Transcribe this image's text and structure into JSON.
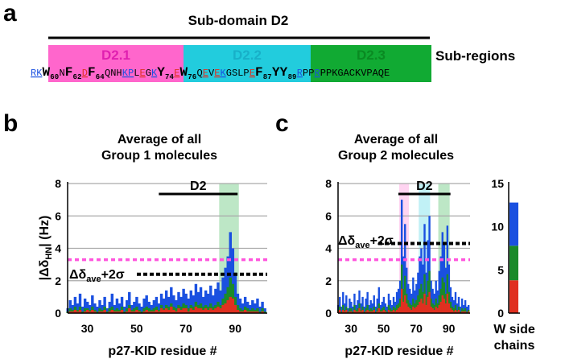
{
  "panel_a": {
    "letter": "a",
    "header": "Sub-domain D2",
    "subregions_label": "Sub-regions",
    "regions": [
      {
        "name": "D2.1",
        "color": "#ff66cc",
        "text_color": "#e020b0"
      },
      {
        "name": "D2.2",
        "color": "#22ccdd",
        "text_color": "#18b0c8"
      },
      {
        "name": "D2.3",
        "color": "#11aa33",
        "text_color": "#0a8a22"
      }
    ],
    "sequence": [
      {
        "t": "RK",
        "s": "m",
        "c": "blue",
        "u": true
      },
      {
        "t": "W",
        "s": "b",
        "c": "black"
      },
      {
        "t": "60",
        "s": "sub"
      },
      {
        "t": "N",
        "s": "m",
        "c": "black"
      },
      {
        "t": "F",
        "s": "b",
        "c": "black"
      },
      {
        "t": "62",
        "s": "sub"
      },
      {
        "t": "D",
        "s": "m",
        "c": "red",
        "u": true
      },
      {
        "t": "F",
        "s": "b",
        "c": "black"
      },
      {
        "t": "64",
        "s": "sub"
      },
      {
        "t": "QNH",
        "s": "m",
        "c": "black"
      },
      {
        "t": "KP",
        "s": "m",
        "c": "blue",
        "u": true
      },
      {
        "t": "L",
        "s": "m",
        "c": "black"
      },
      {
        "t": "E",
        "s": "m",
        "c": "red",
        "u": true
      },
      {
        "t": "G",
        "s": "m",
        "c": "black"
      },
      {
        "t": "K",
        "s": "m",
        "c": "blue",
        "u": true
      },
      {
        "t": "Y",
        "s": "b",
        "c": "black"
      },
      {
        "t": "74",
        "s": "sub"
      },
      {
        "t": "E",
        "s": "m",
        "c": "red",
        "u": true
      },
      {
        "t": "W",
        "s": "b",
        "c": "black"
      },
      {
        "t": "76",
        "s": "sub"
      },
      {
        "t": "Q",
        "s": "m",
        "c": "black"
      },
      {
        "t": "E",
        "s": "m",
        "c": "red",
        "u": true
      },
      {
        "t": "V",
        "s": "m",
        "c": "black"
      },
      {
        "t": "E",
        "s": "m",
        "c": "red",
        "u": true
      },
      {
        "t": "K",
        "s": "m",
        "c": "blue",
        "u": true
      },
      {
        "t": "GSLP",
        "s": "m",
        "c": "black"
      },
      {
        "t": "E",
        "s": "m",
        "c": "red",
        "u": true
      },
      {
        "t": "F",
        "s": "b",
        "c": "black"
      },
      {
        "t": "87",
        "s": "sub"
      },
      {
        "t": "YY",
        "s": "b",
        "c": "black"
      },
      {
        "t": "89",
        "s": "sub"
      },
      {
        "t": "R",
        "s": "m",
        "c": "blue",
        "u": true
      },
      {
        "t": "PP",
        "s": "m",
        "c": "black"
      },
      {
        "t": "R",
        "s": "m",
        "c": "blue",
        "u": true
      },
      {
        "t": "PPKGACKVPAQE",
        "s": "m",
        "c": "black"
      }
    ]
  },
  "colors": {
    "blue": "#1a50e0",
    "red": "#e03020",
    "green": "#1a8a2a",
    "magenta": "#ff55dd",
    "threshold": "#000000"
  },
  "chart_data": [
    {
      "type": "bar",
      "panel": "b",
      "title": [
        "Average of all",
        "Group 1 molecules"
      ],
      "xlabel": "p27-KID residue #",
      "ylabel": "|ΔδHN| (Hz)",
      "xlim": [
        22,
        103
      ],
      "ylim": [
        0,
        8
      ],
      "xticks": [
        30,
        50,
        70,
        90
      ],
      "yticks": [
        0,
        2,
        4,
        6,
        8
      ],
      "d2_label": "D2",
      "d2_range": [
        60,
        90
      ],
      "highlights": [
        {
          "from": 84,
          "to": 91,
          "color": "#11aa33"
        }
      ],
      "threshold_label": "Δδave+2σ",
      "threshold_black": 2.4,
      "threshold_magenta": 3.3,
      "x": [
        22,
        23,
        24,
        25,
        26,
        27,
        28,
        29,
        30,
        31,
        32,
        33,
        34,
        35,
        36,
        37,
        38,
        39,
        40,
        41,
        42,
        43,
        44,
        45,
        46,
        47,
        48,
        49,
        50,
        51,
        52,
        53,
        54,
        55,
        56,
        57,
        58,
        59,
        60,
        61,
        62,
        63,
        64,
        65,
        66,
        67,
        68,
        69,
        70,
        71,
        72,
        73,
        74,
        75,
        76,
        77,
        78,
        79,
        80,
        81,
        82,
        83,
        84,
        85,
        86,
        87,
        88,
        89,
        90,
        91,
        92,
        93,
        94,
        95,
        96,
        97,
        98,
        99,
        100,
        101,
        102
      ],
      "series": [
        {
          "name": "blue",
          "values": [
            0.3,
            0.8,
            0.5,
            1.0,
            0.6,
            1.2,
            0.4,
            0.9,
            0.7,
            0.5,
            1.1,
            0.6,
            0.4,
            0.8,
            0.5,
            1.0,
            0.3,
            0.7,
            1.2,
            0.5,
            0.9,
            0.6,
            1.0,
            0.4,
            0.8,
            1.3,
            0.5,
            0.7,
            1.0,
            0.6,
            0.4,
            0.9,
            1.1,
            0.7,
            0.5,
            0.8,
            1.0,
            0.6,
            1.2,
            0.9,
            1.4,
            1.0,
            1.6,
            1.1,
            0.8,
            1.3,
            1.0,
            1.5,
            1.2,
            0.9,
            1.4,
            1.1,
            1.8,
            1.3,
            1.6,
            1.0,
            1.4,
            1.2,
            1.7,
            1.1,
            1.5,
            1.9,
            1.4,
            2.2,
            2.8,
            3.5,
            5.0,
            4.0,
            2.5,
            1.2,
            0.9,
            0.6,
            1.0,
            0.7,
            0.5,
            0.8,
            0.6,
            0.9,
            0.4,
            0.7,
            0.3
          ]
        },
        {
          "name": "green",
          "values": [
            0.1,
            0.3,
            0.2,
            0.4,
            0.2,
            0.4,
            0.1,
            0.3,
            0.3,
            0.2,
            0.4,
            0.2,
            0.1,
            0.3,
            0.2,
            0.4,
            0.1,
            0.3,
            0.4,
            0.2,
            0.3,
            0.2,
            0.4,
            0.1,
            0.3,
            0.5,
            0.2,
            0.3,
            0.4,
            0.2,
            0.1,
            0.3,
            0.4,
            0.3,
            0.2,
            0.3,
            0.4,
            0.2,
            0.5,
            0.3,
            0.5,
            0.4,
            0.6,
            0.4,
            0.3,
            0.5,
            0.4,
            0.6,
            0.5,
            0.3,
            0.5,
            0.4,
            0.7,
            0.5,
            0.6,
            0.4,
            0.5,
            0.4,
            0.6,
            0.4,
            0.5,
            0.7,
            0.5,
            0.9,
            1.2,
            1.6,
            2.2,
            1.8,
            1.0,
            0.5,
            0.3,
            0.2,
            0.4,
            0.3,
            0.2,
            0.3,
            0.2,
            0.3,
            0.1,
            0.3,
            0.1
          ]
        },
        {
          "name": "red",
          "values": [
            0.0,
            0.1,
            0.1,
            0.2,
            0.1,
            0.2,
            0.0,
            0.1,
            0.2,
            0.1,
            0.2,
            0.1,
            0.0,
            0.1,
            0.1,
            0.2,
            0.0,
            0.1,
            0.2,
            0.1,
            0.1,
            0.1,
            0.2,
            0.0,
            0.1,
            0.3,
            0.1,
            0.1,
            0.2,
            0.1,
            0.0,
            0.1,
            0.2,
            0.1,
            0.1,
            0.1,
            0.2,
            0.1,
            0.3,
            0.2,
            0.3,
            0.2,
            0.4,
            0.2,
            0.1,
            0.3,
            0.2,
            0.3,
            0.3,
            0.1,
            0.3,
            0.2,
            0.4,
            0.3,
            0.3,
            0.2,
            0.3,
            0.2,
            0.3,
            0.2,
            0.3,
            0.4,
            0.3,
            0.5,
            0.6,
            0.8,
            1.0,
            0.9,
            0.5,
            0.2,
            0.1,
            0.1,
            0.2,
            0.1,
            0.1,
            0.1,
            0.1,
            0.1,
            0.0,
            0.1,
            0.0
          ]
        }
      ]
    },
    {
      "type": "bar",
      "panel": "c",
      "title": [
        "Average of all",
        "Group 2 molecules"
      ],
      "xlabel": "p27-KID residue #",
      "ylabel": "",
      "xlim": [
        22,
        103
      ],
      "ylim": [
        0,
        8
      ],
      "xticks": [
        30,
        50,
        70,
        90
      ],
      "yticks": [
        0,
        2,
        4,
        6,
        8
      ],
      "d2_label": "D2",
      "d2_range": [
        60,
        90
      ],
      "highlights": [
        {
          "from": 60,
          "to": 65,
          "color": "#ff66cc"
        },
        {
          "from": 72,
          "to": 78,
          "color": "#22ccdd"
        },
        {
          "from": 84,
          "to": 90,
          "color": "#11aa33"
        }
      ],
      "threshold_label": "Δδave+2σ",
      "threshold_black": 4.3,
      "threshold_magenta": 3.3,
      "x": [
        22,
        23,
        24,
        25,
        26,
        27,
        28,
        29,
        30,
        31,
        32,
        33,
        34,
        35,
        36,
        37,
        38,
        39,
        40,
        41,
        42,
        43,
        44,
        45,
        46,
        47,
        48,
        49,
        50,
        51,
        52,
        53,
        54,
        55,
        56,
        57,
        58,
        59,
        60,
        61,
        62,
        63,
        64,
        65,
        66,
        67,
        68,
        69,
        70,
        71,
        72,
        73,
        74,
        75,
        76,
        77,
        78,
        79,
        80,
        81,
        82,
        83,
        84,
        85,
        86,
        87,
        88,
        89,
        90,
        91,
        92,
        93,
        94,
        95,
        96,
        97,
        98,
        99,
        100,
        101,
        102
      ],
      "series": [
        {
          "name": "blue",
          "values": [
            0.5,
            1.0,
            0.4,
            1.3,
            0.6,
            1.1,
            0.3,
            0.9,
            0.7,
            0.4,
            1.2,
            0.5,
            0.8,
            1.4,
            0.6,
            1.0,
            0.4,
            0.9,
            1.3,
            0.5,
            0.8,
            0.6,
            1.1,
            0.4,
            0.9,
            1.6,
            0.5,
            0.7,
            1.0,
            0.6,
            0.4,
            1.2,
            0.8,
            0.5,
            1.0,
            0.7,
            1.3,
            1.5,
            2.0,
            7.0,
            3.5,
            5.5,
            2.8,
            1.8,
            1.5,
            1.2,
            2.2,
            1.4,
            1.8,
            2.5,
            3.5,
            4.0,
            3.0,
            5.5,
            2.5,
            4.5,
            6.0,
            2.0,
            1.5,
            1.2,
            2.0,
            1.4,
            2.6,
            3.5,
            5.0,
            4.4,
            2.8,
            5.4,
            3.0,
            1.6,
            1.0,
            0.8,
            1.3,
            0.6,
            1.0,
            0.4,
            0.9,
            0.5,
            0.8,
            0.4,
            0.5
          ]
        },
        {
          "name": "green",
          "values": [
            0.2,
            0.4,
            0.1,
            0.5,
            0.2,
            0.4,
            0.1,
            0.3,
            0.3,
            0.1,
            0.5,
            0.2,
            0.3,
            0.6,
            0.2,
            0.4,
            0.1,
            0.3,
            0.5,
            0.2,
            0.3,
            0.2,
            0.4,
            0.1,
            0.3,
            0.6,
            0.2,
            0.3,
            0.4,
            0.2,
            0.1,
            0.5,
            0.3,
            0.2,
            0.4,
            0.3,
            0.5,
            0.6,
            0.9,
            3.0,
            1.5,
            2.3,
            1.2,
            0.8,
            0.6,
            0.5,
            0.9,
            0.6,
            0.8,
            1.1,
            1.5,
            1.8,
            1.3,
            2.4,
            1.1,
            2.0,
            2.6,
            0.9,
            0.6,
            0.5,
            0.9,
            0.6,
            1.1,
            1.5,
            2.2,
            1.9,
            1.2,
            2.4,
            1.3,
            0.7,
            0.4,
            0.3,
            0.5,
            0.2,
            0.4,
            0.1,
            0.3,
            0.2,
            0.3,
            0.1,
            0.2
          ]
        },
        {
          "name": "red",
          "values": [
            0.1,
            0.2,
            0.0,
            0.2,
            0.1,
            0.2,
            0.0,
            0.1,
            0.1,
            0.0,
            0.2,
            0.1,
            0.1,
            0.3,
            0.1,
            0.2,
            0.0,
            0.1,
            0.2,
            0.1,
            0.1,
            0.1,
            0.2,
            0.0,
            0.1,
            0.3,
            0.1,
            0.1,
            0.2,
            0.1,
            0.0,
            0.2,
            0.1,
            0.1,
            0.2,
            0.1,
            0.2,
            0.3,
            0.4,
            1.5,
            0.7,
            1.1,
            0.6,
            0.4,
            0.3,
            0.2,
            0.4,
            0.3,
            0.4,
            0.5,
            0.7,
            0.9,
            0.6,
            1.2,
            0.5,
            1.0,
            1.3,
            0.4,
            0.3,
            0.2,
            0.4,
            0.3,
            0.5,
            0.7,
            1.1,
            0.9,
            0.6,
            1.2,
            0.6,
            0.3,
            0.2,
            0.1,
            0.2,
            0.1,
            0.2,
            0.0,
            0.1,
            0.1,
            0.1,
            0.0,
            0.1
          ]
        }
      ]
    },
    {
      "type": "bar",
      "panel": "c-side",
      "title": "",
      "xlabel": [
        "W side",
        "chains"
      ],
      "ylim": [
        0,
        15
      ],
      "yticks": [
        0,
        5,
        10,
        15
      ],
      "series": [
        {
          "name": "red",
          "values": [
            3.8
          ]
        },
        {
          "name": "green",
          "values": [
            4.0
          ]
        },
        {
          "name": "blue",
          "values": [
            5.0
          ]
        }
      ]
    }
  ]
}
